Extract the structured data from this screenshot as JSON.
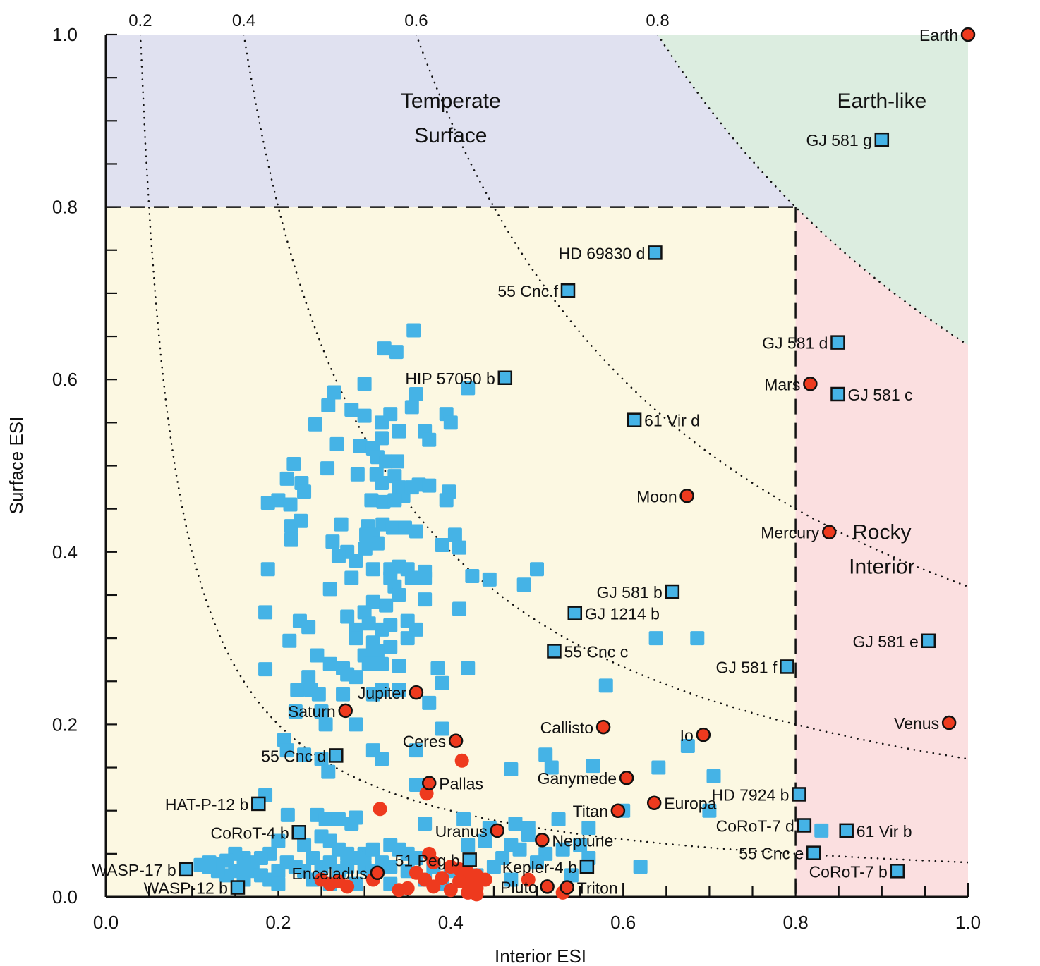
{
  "chart_data": {
    "type": "scatter",
    "title": "",
    "xlabel": "Interior ESI",
    "ylabel": "Surface ESI",
    "xlim": [
      0.0,
      1.0
    ],
    "ylim": [
      0.0,
      1.0
    ],
    "x_ticks": [
      "0.0",
      "0.2",
      "0.4",
      "0.6",
      "0.8",
      "1.0"
    ],
    "y_ticks": [
      "0.0",
      "0.2",
      "0.4",
      "0.6",
      "0.8",
      "1.0"
    ],
    "iso_esi_curves": [
      "0.2",
      "0.4",
      "0.6",
      "0.8"
    ],
    "grid": false,
    "regions": [
      {
        "label_lines": [
          "Temperate",
          "Surface"
        ],
        "color": "#e0e1f0"
      },
      {
        "label_lines": [
          "Earth-like"
        ],
        "color": "#dcede0"
      },
      {
        "label_lines": [
          "Rocky",
          "Interior"
        ],
        "color": "#fbdfe0"
      },
      {
        "label_lines": [],
        "color": "#fcf8e2"
      }
    ],
    "colors": {
      "solar_system": "#ee3a1e",
      "exoplanet": "#45b3e6",
      "labeled_marker_edge": "#111111"
    },
    "labeled_solar_system": [
      {
        "name": "Earth",
        "x": 1.0,
        "y": 1.0
      },
      {
        "name": "Mars",
        "x": 0.817,
        "y": 0.595
      },
      {
        "name": "Moon",
        "x": 0.674,
        "y": 0.465
      },
      {
        "name": "Mercury",
        "x": 0.839,
        "y": 0.423
      },
      {
        "name": "Venus",
        "x": 0.978,
        "y": 0.202
      },
      {
        "name": "Io",
        "x": 0.693,
        "y": 0.188
      },
      {
        "name": "Callisto",
        "x": 0.577,
        "y": 0.197
      },
      {
        "name": "Jupiter",
        "x": 0.36,
        "y": 0.237
      },
      {
        "name": "Saturn",
        "x": 0.278,
        "y": 0.216
      },
      {
        "name": "Ceres",
        "x": 0.406,
        "y": 0.181
      },
      {
        "name": "Pallas",
        "x": 0.375,
        "y": 0.132
      },
      {
        "name": "Ganymede",
        "x": 0.604,
        "y": 0.138
      },
      {
        "name": "Europa",
        "x": 0.636,
        "y": 0.109
      },
      {
        "name": "Titan",
        "x": 0.594,
        "y": 0.1
      },
      {
        "name": "Uranus",
        "x": 0.454,
        "y": 0.077
      },
      {
        "name": "Neptune",
        "x": 0.506,
        "y": 0.066
      },
      {
        "name": "Enceladus",
        "x": 0.315,
        "y": 0.028
      },
      {
        "name": "Pluto",
        "x": 0.512,
        "y": 0.012
      },
      {
        "name": "Triton",
        "x": 0.535,
        "y": 0.011
      }
    ],
    "labeled_exoplanets": [
      {
        "name": "GJ 581 g",
        "x": 0.9,
        "y": 0.878
      },
      {
        "name": "HD 69830 d",
        "x": 0.637,
        "y": 0.747
      },
      {
        "name": "55 Cnc f",
        "x": 0.536,
        "y": 0.703
      },
      {
        "name": "GJ 581 d",
        "x": 0.849,
        "y": 0.643
      },
      {
        "name": "GJ 581 c",
        "x": 0.849,
        "y": 0.583
      },
      {
        "name": "HIP 57050 b",
        "x": 0.463,
        "y": 0.602
      },
      {
        "name": "61 Vir d",
        "x": 0.613,
        "y": 0.553
      },
      {
        "name": "GJ 581 b",
        "x": 0.657,
        "y": 0.354
      },
      {
        "name": "GJ 1214 b",
        "x": 0.544,
        "y": 0.329
      },
      {
        "name": "GJ 581 e",
        "x": 0.954,
        "y": 0.297
      },
      {
        "name": "55 Cnc c",
        "x": 0.52,
        "y": 0.285
      },
      {
        "name": "GJ 581 f",
        "x": 0.79,
        "y": 0.267
      },
      {
        "name": "55 Cnc d",
        "x": 0.267,
        "y": 0.164
      },
      {
        "name": "HAT-P-12 b",
        "x": 0.177,
        "y": 0.108
      },
      {
        "name": "HD 7924 b",
        "x": 0.804,
        "y": 0.119
      },
      {
        "name": "CoRoT-7 d",
        "x": 0.81,
        "y": 0.083
      },
      {
        "name": "61 Vir b",
        "x": 0.859,
        "y": 0.077
      },
      {
        "name": "CoRoT-4 b",
        "x": 0.224,
        "y": 0.075
      },
      {
        "name": "55 Cnc e",
        "x": 0.821,
        "y": 0.051
      },
      {
        "name": "51 Peg b",
        "x": 0.422,
        "y": 0.043
      },
      {
        "name": "Kepler-4 b",
        "x": 0.558,
        "y": 0.035
      },
      {
        "name": "CoRoT-7 b",
        "x": 0.918,
        "y": 0.03
      },
      {
        "name": "WASP-17 b",
        "x": 0.093,
        "y": 0.032
      },
      {
        "name": "WASP-12 b",
        "x": 0.153,
        "y": 0.011
      }
    ],
    "unlabeled_exoplanets": [
      [
        0.357,
        0.657
      ],
      [
        0.323,
        0.636
      ],
      [
        0.337,
        0.632
      ],
      [
        0.3,
        0.595
      ],
      [
        0.36,
        0.583
      ],
      [
        0.42,
        0.59
      ],
      [
        0.265,
        0.585
      ],
      [
        0.355,
        0.568
      ],
      [
        0.258,
        0.57
      ],
      [
        0.285,
        0.565
      ],
      [
        0.3,
        0.558
      ],
      [
        0.32,
        0.55
      ],
      [
        0.33,
        0.56
      ],
      [
        0.395,
        0.56
      ],
      [
        0.4,
        0.55
      ],
      [
        0.243,
        0.548
      ],
      [
        0.37,
        0.54
      ],
      [
        0.375,
        0.53
      ],
      [
        0.34,
        0.54
      ],
      [
        0.32,
        0.532
      ],
      [
        0.268,
        0.525
      ],
      [
        0.295,
        0.523
      ],
      [
        0.31,
        0.52
      ],
      [
        0.315,
        0.51
      ],
      [
        0.325,
        0.505
      ],
      [
        0.338,
        0.505
      ],
      [
        0.218,
        0.502
      ],
      [
        0.257,
        0.497
      ],
      [
        0.292,
        0.49
      ],
      [
        0.314,
        0.49
      ],
      [
        0.32,
        0.48
      ],
      [
        0.335,
        0.488
      ],
      [
        0.21,
        0.485
      ],
      [
        0.227,
        0.48
      ],
      [
        0.23,
        0.47
      ],
      [
        0.34,
        0.475
      ],
      [
        0.345,
        0.465
      ],
      [
        0.355,
        0.475
      ],
      [
        0.363,
        0.478
      ],
      [
        0.375,
        0.477
      ],
      [
        0.398,
        0.47
      ],
      [
        0.395,
        0.46
      ],
      [
        0.2,
        0.46
      ],
      [
        0.188,
        0.457
      ],
      [
        0.214,
        0.455
      ],
      [
        0.308,
        0.46
      ],
      [
        0.322,
        0.458
      ],
      [
        0.335,
        0.46
      ],
      [
        0.215,
        0.43
      ],
      [
        0.226,
        0.436
      ],
      [
        0.273,
        0.432
      ],
      [
        0.304,
        0.43
      ],
      [
        0.321,
        0.432
      ],
      [
        0.333,
        0.428
      ],
      [
        0.347,
        0.428
      ],
      [
        0.31,
        0.42
      ],
      [
        0.315,
        0.41
      ],
      [
        0.301,
        0.404
      ],
      [
        0.36,
        0.424
      ],
      [
        0.405,
        0.42
      ],
      [
        0.263,
        0.412
      ],
      [
        0.215,
        0.414
      ],
      [
        0.28,
        0.4
      ],
      [
        0.29,
        0.39
      ],
      [
        0.302,
        0.42
      ],
      [
        0.27,
        0.395
      ],
      [
        0.39,
        0.408
      ],
      [
        0.41,
        0.405
      ],
      [
        0.31,
        0.38
      ],
      [
        0.33,
        0.38
      ],
      [
        0.34,
        0.383
      ],
      [
        0.35,
        0.38
      ],
      [
        0.37,
        0.377
      ],
      [
        0.188,
        0.38
      ],
      [
        0.285,
        0.37
      ],
      [
        0.33,
        0.37
      ],
      [
        0.355,
        0.37
      ],
      [
        0.37,
        0.37
      ],
      [
        0.425,
        0.372
      ],
      [
        0.445,
        0.368
      ],
      [
        0.5,
        0.38
      ],
      [
        0.485,
        0.362
      ],
      [
        0.335,
        0.36
      ],
      [
        0.26,
        0.357
      ],
      [
        0.34,
        0.35
      ],
      [
        0.37,
        0.345
      ],
      [
        0.31,
        0.342
      ],
      [
        0.41,
        0.334
      ],
      [
        0.325,
        0.338
      ],
      [
        0.185,
        0.33
      ],
      [
        0.28,
        0.325
      ],
      [
        0.3,
        0.33
      ],
      [
        0.305,
        0.317
      ],
      [
        0.33,
        0.315
      ],
      [
        0.225,
        0.32
      ],
      [
        0.235,
        0.313
      ],
      [
        0.29,
        0.31
      ],
      [
        0.32,
        0.31
      ],
      [
        0.35,
        0.32
      ],
      [
        0.36,
        0.31
      ],
      [
        0.29,
        0.3
      ],
      [
        0.31,
        0.295
      ],
      [
        0.33,
        0.29
      ],
      [
        0.35,
        0.3
      ],
      [
        0.213,
        0.297
      ],
      [
        0.3,
        0.28
      ],
      [
        0.315,
        0.285
      ],
      [
        0.305,
        0.27
      ],
      [
        0.245,
        0.28
      ],
      [
        0.26,
        0.27
      ],
      [
        0.275,
        0.265
      ],
      [
        0.28,
        0.258
      ],
      [
        0.29,
        0.255
      ],
      [
        0.32,
        0.27
      ],
      [
        0.34,
        0.268
      ],
      [
        0.385,
        0.265
      ],
      [
        0.42,
        0.265
      ],
      [
        0.185,
        0.264
      ],
      [
        0.235,
        0.255
      ],
      [
        0.39,
        0.248
      ],
      [
        0.222,
        0.24
      ],
      [
        0.238,
        0.24
      ],
      [
        0.247,
        0.235
      ],
      [
        0.275,
        0.235
      ],
      [
        0.31,
        0.235
      ],
      [
        0.32,
        0.24
      ],
      [
        0.34,
        0.24
      ],
      [
        0.375,
        0.225
      ],
      [
        0.22,
        0.215
      ],
      [
        0.25,
        0.215
      ],
      [
        0.255,
        0.2
      ],
      [
        0.29,
        0.2
      ],
      [
        0.39,
        0.195
      ],
      [
        0.207,
        0.182
      ],
      [
        0.21,
        0.17
      ],
      [
        0.23,
        0.165
      ],
      [
        0.25,
        0.16
      ],
      [
        0.31,
        0.17
      ],
      [
        0.32,
        0.16
      ],
      [
        0.36,
        0.17
      ],
      [
        0.258,
        0.145
      ],
      [
        0.47,
        0.148
      ],
      [
        0.51,
        0.165
      ],
      [
        0.517,
        0.15
      ],
      [
        0.565,
        0.152
      ],
      [
        0.641,
        0.15
      ],
      [
        0.705,
        0.14
      ],
      [
        0.675,
        0.175
      ],
      [
        0.185,
        0.118
      ],
      [
        0.211,
        0.095
      ],
      [
        0.245,
        0.095
      ],
      [
        0.255,
        0.09
      ],
      [
        0.27,
        0.09
      ],
      [
        0.285,
        0.085
      ],
      [
        0.29,
        0.092
      ],
      [
        0.36,
        0.13
      ],
      [
        0.37,
        0.085
      ],
      [
        0.415,
        0.09
      ],
      [
        0.445,
        0.08
      ],
      [
        0.475,
        0.085
      ],
      [
        0.49,
        0.08
      ],
      [
        0.525,
        0.09
      ],
      [
        0.56,
        0.08
      ],
      [
        0.6,
        0.1
      ],
      [
        0.7,
        0.1
      ],
      [
        0.83,
        0.077
      ],
      [
        0.49,
        0.072
      ],
      [
        0.48,
        0.055
      ],
      [
        0.51,
        0.05
      ],
      [
        0.53,
        0.055
      ],
      [
        0.55,
        0.06
      ],
      [
        0.44,
        0.065
      ],
      [
        0.47,
        0.06
      ],
      [
        0.46,
        0.045
      ],
      [
        0.42,
        0.06
      ],
      [
        0.33,
        0.06
      ],
      [
        0.34,
        0.055
      ],
      [
        0.35,
        0.05
      ],
      [
        0.36,
        0.045
      ],
      [
        0.3,
        0.05
      ],
      [
        0.31,
        0.055
      ],
      [
        0.32,
        0.04
      ],
      [
        0.25,
        0.07
      ],
      [
        0.26,
        0.065
      ],
      [
        0.27,
        0.055
      ],
      [
        0.28,
        0.05
      ],
      [
        0.29,
        0.045
      ],
      [
        0.2,
        0.065
      ],
      [
        0.23,
        0.06
      ],
      [
        0.24,
        0.045
      ],
      [
        0.19,
        0.05
      ],
      [
        0.18,
        0.045
      ],
      [
        0.17,
        0.04
      ],
      [
        0.16,
        0.045
      ],
      [
        0.15,
        0.05
      ],
      [
        0.14,
        0.042
      ],
      [
        0.13,
        0.038
      ],
      [
        0.12,
        0.04
      ],
      [
        0.11,
        0.037
      ],
      [
        0.15,
        0.03
      ],
      [
        0.16,
        0.035
      ],
      [
        0.17,
        0.03
      ],
      [
        0.18,
        0.025
      ],
      [
        0.19,
        0.02
      ],
      [
        0.2,
        0.03
      ],
      [
        0.21,
        0.04
      ],
      [
        0.22,
        0.035
      ],
      [
        0.23,
        0.03
      ],
      [
        0.25,
        0.035
      ],
      [
        0.26,
        0.04
      ],
      [
        0.27,
        0.03
      ],
      [
        0.28,
        0.035
      ],
      [
        0.3,
        0.035
      ],
      [
        0.31,
        0.03
      ],
      [
        0.33,
        0.035
      ],
      [
        0.35,
        0.03
      ],
      [
        0.37,
        0.02
      ],
      [
        0.38,
        0.035
      ],
      [
        0.4,
        0.03
      ],
      [
        0.43,
        0.025
      ],
      [
        0.45,
        0.035
      ],
      [
        0.5,
        0.04
      ],
      [
        0.54,
        0.025
      ],
      [
        0.62,
        0.035
      ],
      [
        0.47,
        0.02
      ],
      [
        0.39,
        0.015
      ],
      [
        0.33,
        0.015
      ],
      [
        0.24,
        0.02
      ],
      [
        0.14,
        0.025
      ],
      [
        0.13,
        0.03
      ],
      [
        0.12,
        0.035
      ],
      [
        0.16,
        0.02
      ],
      [
        0.2,
        0.015
      ],
      [
        0.26,
        0.015
      ],
      [
        0.29,
        0.015
      ],
      [
        0.56,
        0.045
      ],
      [
        0.58,
        0.245
      ],
      [
        0.638,
        0.3
      ],
      [
        0.686,
        0.3
      ]
    ],
    "unlabeled_solar_system": [
      [
        0.413,
        0.158
      ],
      [
        0.318,
        0.102
      ],
      [
        0.372,
        0.12
      ],
      [
        0.375,
        0.05
      ],
      [
        0.38,
        0.04
      ],
      [
        0.4,
        0.035
      ],
      [
        0.41,
        0.032
      ],
      [
        0.42,
        0.028
      ],
      [
        0.43,
        0.025
      ],
      [
        0.39,
        0.022
      ],
      [
        0.37,
        0.02
      ],
      [
        0.36,
        0.028
      ],
      [
        0.41,
        0.018
      ],
      [
        0.42,
        0.015
      ],
      [
        0.43,
        0.01
      ],
      [
        0.44,
        0.02
      ],
      [
        0.38,
        0.012
      ],
      [
        0.4,
        0.008
      ],
      [
        0.42,
        0.005
      ],
      [
        0.35,
        0.01
      ],
      [
        0.34,
        0.008
      ],
      [
        0.43,
        0.003
      ],
      [
        0.27,
        0.018
      ],
      [
        0.26,
        0.015
      ],
      [
        0.25,
        0.02
      ],
      [
        0.28,
        0.012
      ],
      [
        0.31,
        0.02
      ],
      [
        0.49,
        0.02
      ],
      [
        0.53,
        0.005
      ]
    ]
  }
}
